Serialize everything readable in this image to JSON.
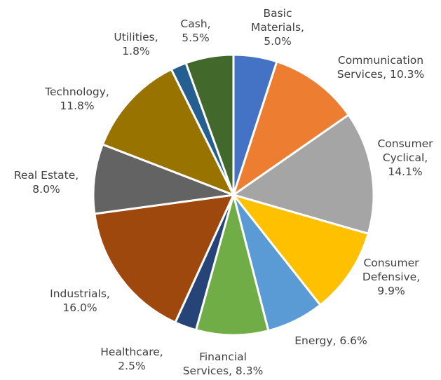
{
  "chart_data": {
    "type": "pie",
    "title": "",
    "start_angle_deg": 0,
    "direction": "clockwise",
    "slices": [
      {
        "label": "Basic Materials",
        "value": 5.0,
        "display": "5.0%",
        "color": "#4472C4"
      },
      {
        "label": "Communication Services",
        "value": 10.3,
        "display": "10.3%",
        "color": "#ED7D31"
      },
      {
        "label": "Consumer Cyclical",
        "value": 14.1,
        "display": "14.1%",
        "color": "#A5A5A5"
      },
      {
        "label": "Consumer Defensive",
        "value": 9.9,
        "display": "9.9%",
        "color": "#FFC000"
      },
      {
        "label": "Energy",
        "value": 6.6,
        "display": "6.6%",
        "color": "#5B9BD5"
      },
      {
        "label": "Financial Services",
        "value": 8.3,
        "display": "8.3%",
        "color": "#70AD47"
      },
      {
        "label": "Healthcare",
        "value": 2.5,
        "display": "2.5%",
        "color": "#264478"
      },
      {
        "label": "Industrials",
        "value": 16.0,
        "display": "16.0%",
        "color": "#9E480E"
      },
      {
        "label": "Real Estate",
        "value": 8.0,
        "display": "8.0%",
        "color": "#636363"
      },
      {
        "label": "Technology",
        "value": 11.8,
        "display": "11.8%",
        "color": "#997300"
      },
      {
        "label": "Utilities",
        "value": 1.8,
        "display": "1.8%",
        "color": "#255E91"
      },
      {
        "label": "Cash",
        "value": 5.5,
        "display": "5.5%",
        "color": "#43682B"
      }
    ]
  }
}
